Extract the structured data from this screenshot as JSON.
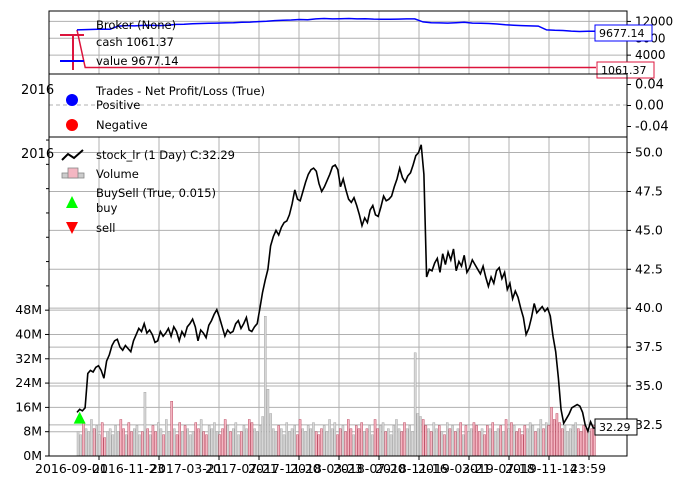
{
  "chart_data": [
    {
      "type": "line",
      "panel": "broker",
      "legend": {
        "title": "Broker (None)",
        "entries": [
          "cash 1061.37",
          "value 9677.14"
        ],
        "placement": "top-left"
      },
      "yticks": [
        "12000",
        "8000",
        "4000"
      ],
      "ylim": [
        0,
        14000
      ],
      "grid": true,
      "colors": {
        "cash": "#dc143c",
        "value": "#0000ff"
      },
      "series": [
        {
          "name": "cash",
          "y": [
            10000,
            1061.37,
            1061.37,
            1061.37,
            1061.37,
            1061.37,
            1061.37,
            1061.37,
            1061.37,
            1061.37,
            1061.37,
            1061.37,
            1061.37,
            1061.37,
            1061.37,
            1061.37,
            1061.37,
            1061.37,
            1061.37,
            1061.37,
            1061.37,
            1061.37,
            1061.37,
            1061.37,
            1061.37,
            1061.37,
            1061.37,
            1061.37,
            1061.37,
            1061.37,
            1061.37,
            1061.37,
            1061.37,
            1061.37,
            1061.37,
            1061.37,
            1061.37,
            1061.37,
            1061.37,
            1061.37,
            1061.37,
            1061.37,
            1061.37,
            1061.37,
            1061.37,
            1061.37,
            1061.37,
            1061.37,
            1061.37,
            1061.37,
            1061.37,
            1061.37,
            1061.37,
            1061.37,
            1061.37,
            1061.37,
            1061.37,
            1061.37,
            1061.37,
            1061.37,
            1061.37,
            1061.37,
            1061.37,
            1061.37
          ]
        },
        {
          "name": "value",
          "y": [
            10000,
            10050,
            10100,
            10180,
            10150,
            10900,
            11000,
            10950,
            11050,
            11100,
            11000,
            11100,
            11300,
            11350,
            11450,
            11500,
            11550,
            11600,
            11650,
            11700,
            11800,
            11850,
            11950,
            12050,
            12200,
            12300,
            12350,
            12450,
            12400,
            12600,
            12700,
            12600,
            12650,
            12700,
            12600,
            12650,
            12550,
            12500,
            12500,
            12550,
            12600,
            12600,
            11900,
            11700,
            11650,
            11600,
            11700,
            11800,
            11600,
            11550,
            11500,
            11400,
            11200,
            11100,
            11000,
            10950,
            10900,
            10000,
            9900,
            9850,
            9700,
            9600,
            9650,
            9677.14
          ]
        }
      ],
      "value_labels": [
        "9677.14",
        "1061.37"
      ]
    },
    {
      "type": "scatter",
      "panel": "trades",
      "legend": {
        "title": "Trades - Net Profit/Loss (True)",
        "entries": [
          "Positive",
          "Negative"
        ],
        "placement": "top-left"
      },
      "yticks": [
        "0.04",
        "0.00",
        "-0.04"
      ],
      "ylim": [
        -0.06,
        0.06
      ],
      "points": [],
      "colors": {
        "Positive": "#0000ff",
        "Negative": "#ff0000"
      },
      "clipped_label": "2016"
    },
    {
      "type": "line",
      "panel": "price",
      "legend": {
        "entries": [
          "stock_lr (1 Day) C:32.29",
          "Volume",
          "BuySell (True, 0.015)",
          "buy",
          "sell"
        ],
        "placement": "top-left"
      },
      "ylim": [
        30.5,
        51
      ],
      "yticks_right": [
        "50.0",
        "47.5",
        "45.0",
        "42.5",
        "40.0",
        "37.5",
        "35.0",
        "32.5"
      ],
      "volume_ylim": [
        0,
        105
      ],
      "yticks_left": [
        "48M",
        "40M",
        "32M",
        "24M",
        "16M",
        "8M",
        "0M"
      ],
      "grid": true,
      "last_close_label": "32.29",
      "clipped_label": "2016",
      "x_tick_labels": [
        "2016-09-01",
        "2016-11-23",
        "2017-03-21",
        "2017-07-21",
        "2017-11-20",
        "2018-03-23",
        "2018-07-20",
        "2018-11-16",
        "2019-03-21",
        "2019-07-18",
        "2019-11-14",
        "23:59"
      ],
      "close": [
        33.3,
        33.5,
        33.4,
        33.6,
        35.8,
        36.0,
        35.9,
        36.2,
        36.3,
        36.0,
        35.5,
        36.6,
        37.0,
        37.6,
        37.9,
        38.0,
        37.5,
        37.3,
        37.6,
        37.4,
        37.2,
        37.9,
        38.3,
        38.7,
        38.5,
        39.0,
        38.4,
        38.6,
        38.3,
        37.8,
        37.9,
        38.5,
        38.2,
        38.4,
        38.7,
        38.2,
        38.8,
        38.5,
        37.9,
        38.5,
        38.2,
        38.8,
        39.0,
        39.3,
        38.8,
        37.9,
        38.6,
        38.4,
        38.1,
        38.9,
        39.2,
        39.6,
        39.9,
        39.4,
        38.8,
        38.2,
        38.6,
        38.4,
        38.5,
        39.0,
        39.2,
        38.7,
        39.0,
        39.4,
        38.6,
        38.5,
        38.8,
        39.0,
        40.0,
        41.0,
        41.8,
        42.5,
        44.0,
        44.6,
        45.0,
        44.7,
        45.2,
        45.5,
        45.6,
        46.0,
        46.7,
        47.6,
        47.0,
        46.9,
        47.5,
        48.1,
        48.6,
        48.9,
        49.0,
        48.8,
        48.0,
        47.5,
        47.8,
        48.2,
        48.6,
        49.1,
        49.2,
        48.9,
        47.8,
        48.3,
        47.6,
        47.0,
        46.8,
        47.1,
        46.6,
        46.0,
        45.3,
        45.8,
        45.5,
        46.3,
        46.6,
        46.0,
        45.9,
        46.5,
        47.2,
        46.9,
        47.0,
        47.2,
        47.8,
        48.3,
        49.0,
        48.4,
        48.1,
        48.5,
        48.7,
        49.2,
        49.8,
        50.0,
        50.5,
        48.6,
        42.0,
        42.5,
        42.4,
        42.9,
        43.2,
        42.3,
        43.5,
        42.8,
        43.6,
        43.1,
        43.8,
        42.4,
        43.0,
        42.7,
        43.4,
        42.3,
        42.6,
        43.1,
        42.8,
        42.5,
        42.2,
        42.7,
        42.0,
        41.4,
        42.0,
        41.6,
        42.4,
        42.6,
        41.9,
        42.3,
        41.2,
        41.6,
        40.6,
        41.1,
        40.7,
        40.0,
        39.4,
        38.3,
        38.7,
        39.4,
        40.3,
        39.7,
        39.9,
        40.1,
        39.8,
        40.0,
        39.5,
        38.2,
        37.2,
        35.5,
        33.5,
        32.6,
        32.9,
        33.2,
        33.6,
        33.7,
        33.8,
        33.7,
        33.3,
        32.5,
        32.1,
        32.7,
        32.3,
        32.29
      ],
      "volume": [
        8,
        7,
        11,
        9,
        8,
        12,
        9,
        10,
        7,
        11,
        6,
        8,
        9,
        7,
        10,
        8,
        12,
        9,
        7,
        11,
        8,
        9,
        10,
        7,
        8,
        21,
        9,
        7,
        10,
        8,
        11,
        9,
        7,
        12,
        8,
        18,
        9,
        7,
        11,
        8,
        10,
        9,
        7,
        8,
        11,
        9,
        12,
        8,
        7,
        10,
        9,
        11,
        8,
        7,
        9,
        12,
        10,
        8,
        9,
        11,
        7,
        8,
        10,
        9,
        12,
        11,
        9,
        8,
        10,
        13,
        46,
        22,
        14,
        9,
        8,
        10,
        9,
        7,
        11,
        8,
        9,
        10,
        7,
        12,
        9,
        8,
        10,
        9,
        11,
        8,
        7,
        9,
        10,
        8,
        12,
        9,
        11,
        7,
        9,
        10,
        8,
        12,
        9,
        7,
        10,
        9,
        11,
        8,
        9,
        10,
        7,
        12,
        9,
        10,
        11,
        8,
        9,
        7,
        10,
        12,
        9,
        8,
        11,
        9,
        10,
        8,
        34,
        14,
        13,
        12,
        10,
        9,
        8,
        11,
        9,
        10,
        8,
        7,
        11,
        9,
        10,
        8,
        9,
        11,
        7,
        10,
        8,
        9,
        11,
        10,
        8,
        9,
        7,
        10,
        9,
        11,
        8,
        9,
        10,
        8,
        12,
        9,
        11,
        10,
        8,
        9,
        7,
        10,
        9,
        11,
        10,
        8,
        9,
        12,
        9,
        11,
        10,
        16,
        12,
        14,
        11,
        9,
        10,
        8,
        9,
        10,
        11,
        9,
        8,
        10,
        9,
        8,
        9,
        10
      ],
      "buy_markers": [
        {
          "index": 1,
          "price": 32.9
        }
      ]
    }
  ]
}
